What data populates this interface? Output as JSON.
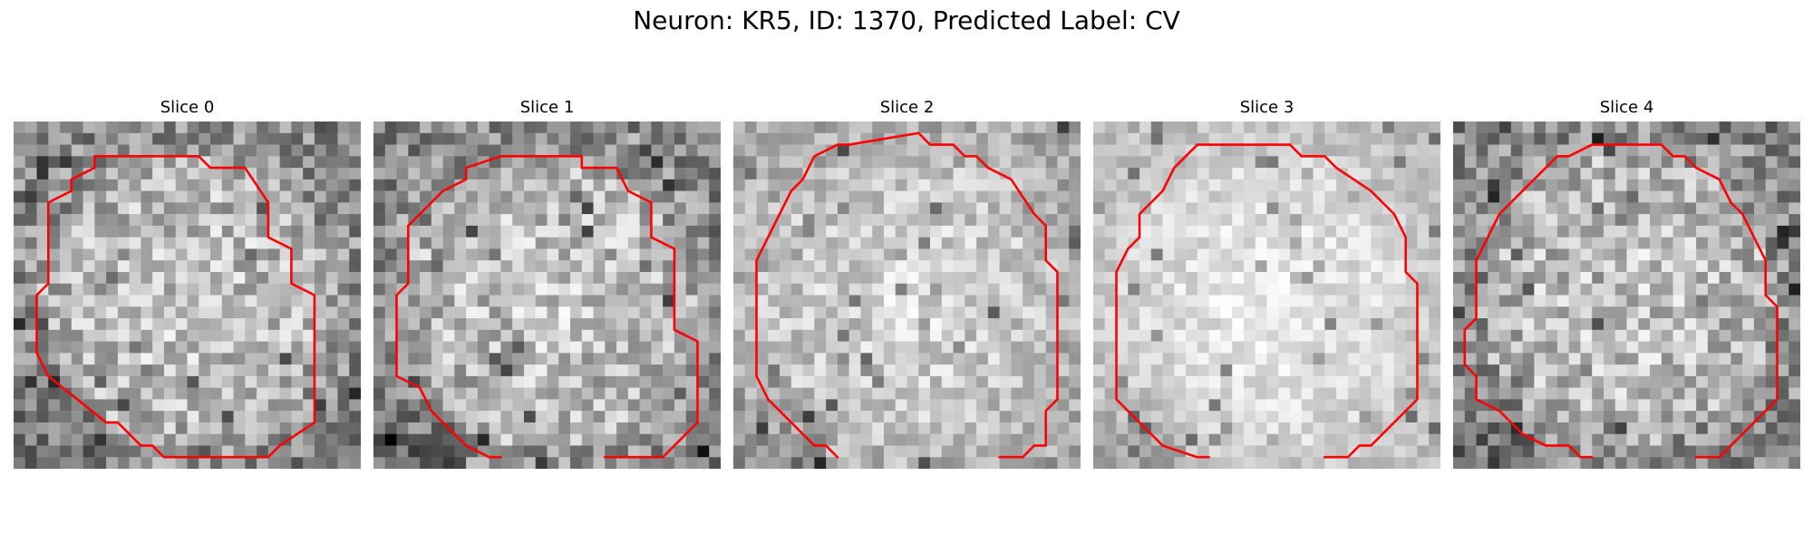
{
  "figure": {
    "title": "Neuron: KR5, ID: 1370, Predicted Label: CV",
    "contour_color": "#ff0000",
    "panels": [
      {
        "title": "Slice 0",
        "brightness": "medium",
        "contrast": "high"
      },
      {
        "title": "Slice 1",
        "brightness": "medium",
        "contrast": "high"
      },
      {
        "title": "Slice 2",
        "brightness": "light",
        "contrast": "medium"
      },
      {
        "title": "Slice 3",
        "brightness": "very-light",
        "contrast": "low"
      },
      {
        "title": "Slice 4",
        "brightness": "medium",
        "contrast": "high"
      }
    ]
  }
}
